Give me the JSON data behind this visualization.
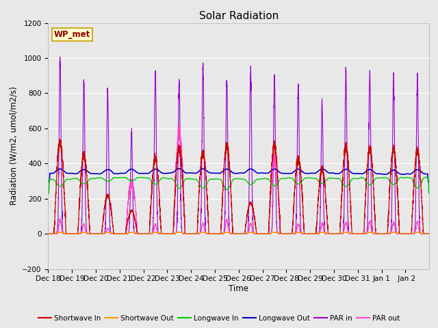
{
  "title": "Solar Radiation",
  "ylabel": "Radiation (W/m2, umol/m2/s)",
  "xlabel": "Time",
  "ylim": [
    -200,
    1200
  ],
  "yticks": [
    -200,
    0,
    200,
    400,
    600,
    800,
    1000,
    1200
  ],
  "num_days": 16,
  "sw_in_peaks": [
    520,
    450,
    220,
    130,
    430,
    490,
    460,
    500,
    175,
    500,
    430,
    365,
    490,
    490,
    480,
    470
  ],
  "par_in_peaks": [
    1000,
    870,
    810,
    580,
    910,
    870,
    950,
    860,
    940,
    880,
    850,
    750,
    925,
    925,
    900,
    900
  ],
  "par_out_peaks": [
    80,
    55,
    30,
    290,
    55,
    575,
    60,
    80,
    60,
    415,
    55,
    60,
    65,
    70,
    65,
    70
  ],
  "legend_entries": [
    {
      "label": "Shortwave In",
      "color": "#cc0000"
    },
    {
      "label": "Shortwave Out",
      "color": "#ff9900"
    },
    {
      "label": "Longwave In",
      "color": "#00cc00"
    },
    {
      "label": "Longwave Out",
      "color": "#0000cc"
    },
    {
      "label": "PAR in",
      "color": "#9900cc"
    },
    {
      "label": "PAR out",
      "color": "#ff44cc"
    }
  ],
  "annotation_text": "WP_met",
  "axes_background": "#e8e8e8",
  "fig_background": "#e8e8e8",
  "title_fontsize": 11,
  "tick_fontsize": 7.5,
  "label_fontsize": 8.5,
  "tick_labels": [
    "Dec 18",
    "Dec 19",
    "Dec 20",
    "Dec 21",
    "Dec 22",
    "Dec 23",
    "Dec 24",
    "Dec 25",
    "Dec 26",
    "Dec 27",
    "Dec 28",
    "Dec 29",
    "Dec 30",
    "Dec 31",
    "Jan 1",
    " Jan 2"
  ]
}
